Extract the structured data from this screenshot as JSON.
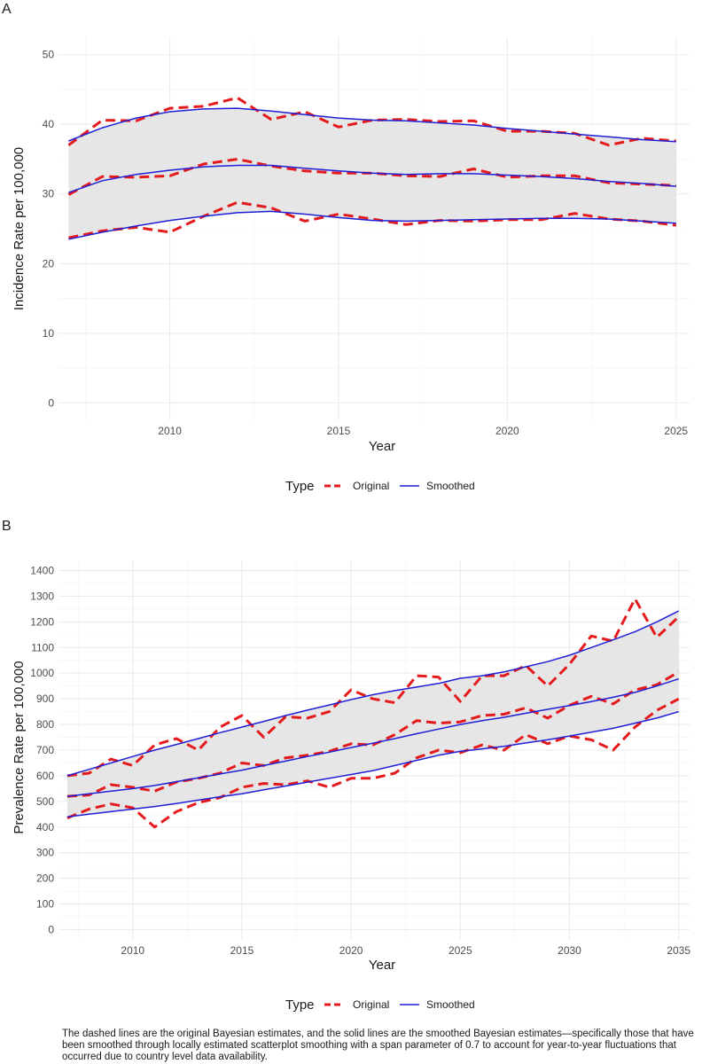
{
  "caption": "The dashed lines are the original Bayesian estimates, and the solid lines are the smoothed Bayesian estimates—specifically those that have been smoothed through locally estimated scatterplot smoothing with a span parameter of 0.7 to account for year-to-year fluctuations that occurred due to country level data availability.",
  "colors": {
    "original": "#e41a1c",
    "smoothed": "#1f1fd6",
    "band": "#e6e6e6",
    "grid": "#ebebeb"
  },
  "chart_data": [
    {
      "type": "line",
      "panel_label": "A",
      "xlabel": "Year",
      "ylabel": "Incidence Rate per 100,000",
      "xlim": [
        2006.7,
        2025.4
      ],
      "ylim": [
        -2.5,
        52.5
      ],
      "x_ticks": [
        2010,
        2015,
        2020,
        2025
      ],
      "y_ticks": [
        0,
        10,
        20,
        30,
        40,
        50
      ],
      "grid": true,
      "legend": {
        "position": "bottom",
        "title": "Type",
        "entries": [
          "Original",
          "Smoothed"
        ]
      },
      "x": [
        2007,
        2008,
        2009,
        2010,
        2011,
        2012,
        2013,
        2014,
        2015,
        2016,
        2017,
        2018,
        2019,
        2020,
        2021,
        2022,
        2023,
        2024,
        2025
      ],
      "series": [
        {
          "name": "Original",
          "group": "upper",
          "style": "dashed",
          "values": [
            37.0,
            40.6,
            40.5,
            42.3,
            42.6,
            43.8,
            40.7,
            41.8,
            39.6,
            40.6,
            40.7,
            40.4,
            40.5,
            39.0,
            39.0,
            38.7,
            37.0,
            38.0,
            37.6
          ]
        },
        {
          "name": "Original",
          "group": "middle",
          "style": "dashed",
          "values": [
            29.9,
            32.5,
            32.4,
            32.6,
            34.3,
            35.0,
            34.0,
            33.3,
            33.0,
            33.0,
            32.6,
            32.5,
            33.6,
            32.4,
            32.6,
            32.6,
            31.6,
            31.4,
            31.2
          ]
        },
        {
          "name": "Original",
          "group": "lower",
          "style": "dashed",
          "values": [
            23.7,
            24.7,
            25.2,
            24.5,
            26.8,
            28.8,
            28.0,
            26.1,
            27.1,
            26.4,
            25.6,
            26.2,
            26.1,
            26.3,
            26.3,
            27.2,
            26.4,
            26.1,
            25.5
          ]
        },
        {
          "name": "Smoothed",
          "group": "upper",
          "style": "solid",
          "values": [
            37.6,
            39.5,
            40.9,
            41.8,
            42.2,
            42.3,
            41.9,
            41.4,
            40.9,
            40.6,
            40.5,
            40.2,
            39.9,
            39.4,
            39.0,
            38.6,
            38.2,
            37.8,
            37.5
          ]
        },
        {
          "name": "Smoothed",
          "group": "middle",
          "style": "solid",
          "values": [
            30.2,
            31.9,
            32.8,
            33.4,
            33.9,
            34.1,
            34.1,
            33.7,
            33.3,
            33.0,
            32.8,
            32.9,
            32.9,
            32.7,
            32.5,
            32.2,
            31.8,
            31.5,
            31.1
          ]
        },
        {
          "name": "Smoothed",
          "group": "lower",
          "style": "solid",
          "values": [
            23.5,
            24.5,
            25.4,
            26.2,
            26.8,
            27.3,
            27.5,
            27.1,
            26.6,
            26.2,
            26.1,
            26.2,
            26.3,
            26.4,
            26.5,
            26.5,
            26.4,
            26.1,
            25.8
          ]
        }
      ]
    },
    {
      "type": "line",
      "panel_label": "B",
      "xlabel": "Year",
      "ylabel": "Prevalence Rate per 100,000",
      "xlim": [
        2006.6,
        2035.5
      ],
      "ylim": [
        -40,
        1440
      ],
      "x_ticks": [
        2010,
        2015,
        2020,
        2025,
        2030,
        2035
      ],
      "y_ticks": [
        0,
        100,
        200,
        300,
        400,
        500,
        600,
        700,
        800,
        900,
        1000,
        1100,
        1200,
        1300,
        1400
      ],
      "grid": true,
      "legend": {
        "position": "bottom",
        "title": "Type",
        "entries": [
          "Original",
          "Smoothed"
        ]
      },
      "x": [
        2007,
        2008,
        2009,
        2010,
        2011,
        2012,
        2013,
        2014,
        2015,
        2016,
        2017,
        2018,
        2019,
        2020,
        2021,
        2022,
        2023,
        2024,
        2025,
        2026,
        2027,
        2028,
        2029,
        2030,
        2031,
        2032,
        2033,
        2034,
        2035
      ],
      "series": [
        {
          "name": "Original",
          "group": "upper",
          "style": "dashed",
          "values": [
            600,
            610,
            665,
            640,
            720,
            745,
            700,
            790,
            835,
            750,
            830,
            825,
            850,
            935,
            900,
            885,
            990,
            985,
            890,
            990,
            990,
            1030,
            950,
            1035,
            1145,
            1125,
            1290,
            1140,
            1220
          ]
        },
        {
          "name": "Original",
          "group": "middle",
          "style": "dashed",
          "values": [
            520,
            525,
            565,
            555,
            540,
            575,
            590,
            610,
            650,
            640,
            670,
            680,
            695,
            725,
            720,
            760,
            815,
            805,
            810,
            835,
            840,
            865,
            825,
            875,
            910,
            880,
            935,
            955,
            1005
          ]
        },
        {
          "name": "Original",
          "group": "lower",
          "style": "dashed",
          "values": [
            435,
            470,
            490,
            475,
            400,
            460,
            495,
            515,
            555,
            570,
            565,
            580,
            555,
            590,
            590,
            610,
            670,
            700,
            690,
            720,
            700,
            760,
            725,
            755,
            740,
            700,
            790,
            855,
            900
          ]
        },
        {
          "name": "Smoothed",
          "group": "upper",
          "style": "solid",
          "values": [
            600,
            625,
            650,
            675,
            700,
            722,
            745,
            768,
            790,
            812,
            835,
            856,
            876,
            897,
            916,
            932,
            946,
            960,
            980,
            990,
            1005,
            1025,
            1045,
            1070,
            1100,
            1130,
            1162,
            1200,
            1243
          ]
        },
        {
          "name": "Smoothed",
          "group": "middle",
          "style": "solid",
          "values": [
            520,
            530,
            540,
            550,
            562,
            577,
            592,
            607,
            622,
            640,
            657,
            675,
            692,
            710,
            727,
            745,
            764,
            782,
            800,
            815,
            828,
            844,
            859,
            874,
            889,
            906,
            925,
            950,
            978
          ]
        },
        {
          "name": "Smoothed",
          "group": "lower",
          "style": "solid",
          "values": [
            440,
            450,
            460,
            470,
            480,
            492,
            505,
            518,
            530,
            545,
            560,
            575,
            590,
            605,
            620,
            640,
            660,
            680,
            695,
            705,
            715,
            728,
            740,
            755,
            770,
            785,
            805,
            825,
            850
          ]
        }
      ]
    }
  ]
}
